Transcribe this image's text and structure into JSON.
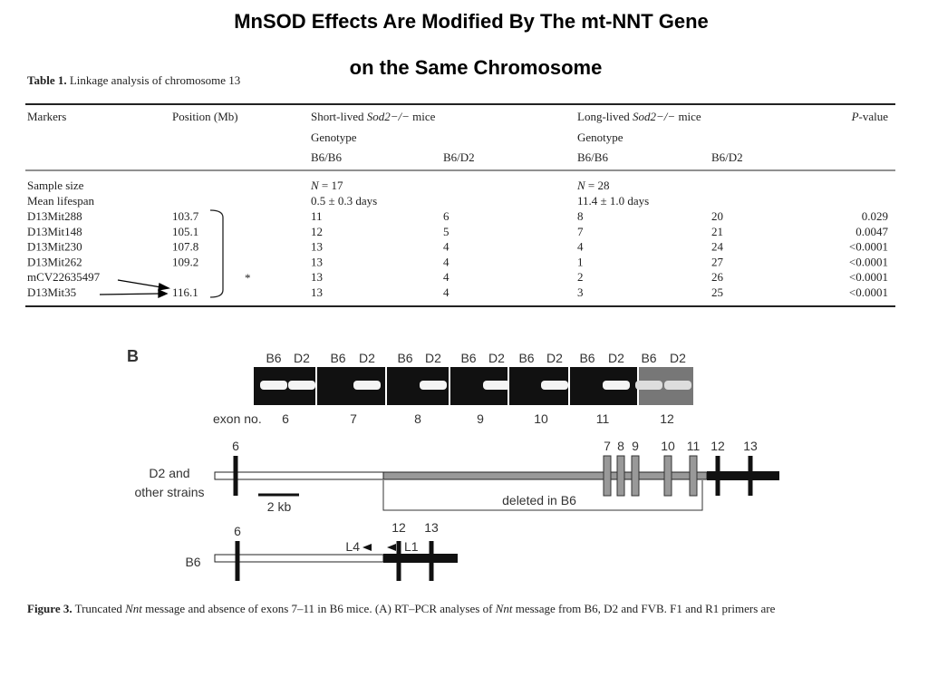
{
  "header": {
    "title_line1": "MnSOD Effects Are Modified By The mt-NNT Gene",
    "title_line2": "on the Same Chromosome"
  },
  "table": {
    "caption_label": "Table 1.",
    "caption": "Linkage analysis of chromosome 13",
    "columns": {
      "markers": "Markers",
      "position": "Position (Mb)",
      "short": {
        "pre": "Short-lived",
        "gene": "Sod2−/−",
        "post": "mice"
      },
      "long": {
        "pre": "Long-lived",
        "gene": "Sod2−/−",
        "post": "mice"
      },
      "pvalue": {
        "p": "P",
        "rest": "-value"
      },
      "genotype_short": "Genotype",
      "genotype_long": "Genotype",
      "genotypes": [
        "B6/B6",
        "B6/D2",
        "B6/B6",
        "B6/D2"
      ]
    },
    "sample_size": {
      "label": "Sample size",
      "short": {
        "n": "N",
        "rest": "= 17"
      },
      "long": {
        "n": "N",
        "rest": "= 28"
      }
    },
    "mean_lifespan": {
      "label": "Mean lifespan",
      "short": "0.5 ± 0.3 days",
      "long": "11.4 ± 1.0 days"
    },
    "rows": [
      [
        "D13Mit288",
        "103.7",
        "11",
        "6",
        "8",
        "20",
        "0.029"
      ],
      [
        "D13Mit148",
        "105.1",
        "12",
        "5",
        "7",
        "21",
        "0.0047"
      ],
      [
        "D13Mit230",
        "107.8",
        "13",
        "4",
        "4",
        "24",
        "<0.0001"
      ],
      [
        "D13Mit262",
        "109.2",
        "13",
        "4",
        "1",
        "27",
        "<0.0001"
      ],
      [
        "mCV22635497",
        null,
        "13",
        "4",
        "2",
        "26",
        "<0.0001"
      ],
      [
        "D13Mit35",
        "116.1",
        "13",
        "4",
        "3",
        "25",
        "<0.0001"
      ]
    ],
    "mark": "*"
  },
  "figure": {
    "label": "B",
    "gel_lanes": [
      [
        "B6",
        "D2"
      ],
      [
        "B6",
        "D2"
      ],
      [
        "B6",
        "D2"
      ],
      [
        "B6",
        "D2"
      ],
      [
        "B6",
        "D2"
      ],
      [
        "B6",
        "D2"
      ],
      [
        "B6",
        "D2"
      ]
    ],
    "exon_label": "exon no.",
    "gel_exons": [
      "6",
      "7",
      "8",
      "9",
      "10",
      "11",
      "12"
    ],
    "d2": {
      "label_line1": "D2 and",
      "label_line2": "other strains",
      "exons": [
        "6",
        "7",
        "8",
        "9",
        "10",
        "11",
        "12",
        "13"
      ],
      "scale": "2 kb",
      "deleted": "deleted in B6"
    },
    "b6": {
      "label": "B6",
      "exons": [
        "6",
        "12",
        "13"
      ],
      "primer_l4": "L4",
      "primer_l1": "L1"
    },
    "caption": {
      "label": "Figure 3.",
      "t1": "Truncated",
      "i1": "Nnt",
      "t2": "message and absence of exons 7–11 in B6 mice. (A) RT–PCR analyses of",
      "i2": "Nnt",
      "t3": "message from B6, D2 and FVB. F1 and R1 primers are"
    }
  }
}
